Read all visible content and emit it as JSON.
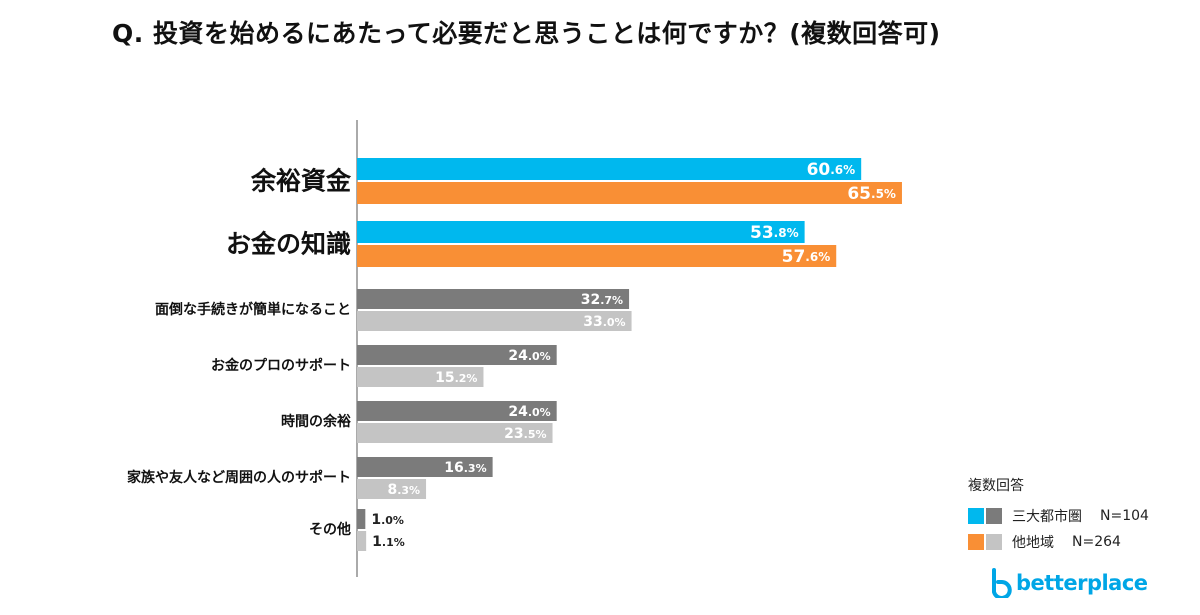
{
  "title": "Q. 投資を始めるにあたって必要だと思うことは何ですか？(複数回答可)",
  "chart_data": {
    "type": "bar",
    "orientation": "horizontal",
    "categories": [
      "余裕資金",
      "お金の知識",
      "面倒な手続きが簡単になること",
      "お金のプロのサポート",
      "時間の余裕",
      "家族や友人など周囲の人のサポート",
      "その他"
    ],
    "emphasized_categories": [
      0,
      1
    ],
    "series": [
      {
        "name": "三大都市圏",
        "n_label": "N=104",
        "values": [
          60.6,
          53.8,
          32.7,
          24.0,
          24.0,
          16.3,
          1.0
        ]
      },
      {
        "name": "他地域",
        "n_label": "N=264",
        "values": [
          65.5,
          57.6,
          33.0,
          15.2,
          23.5,
          8.3,
          1.1
        ]
      }
    ],
    "unit": "%",
    "xlim": [
      0,
      100
    ],
    "colors": {
      "series1_highlight": "#00b8ee",
      "series2_highlight": "#f98f35",
      "series1_normal": "#7b7b7b",
      "series2_normal": "#c4c4c4"
    }
  },
  "legend": {
    "title": "複数回答",
    "items": [
      {
        "label": "三大都市圏",
        "n": "N=104"
      },
      {
        "label": "他地域",
        "n": "N=264"
      }
    ]
  },
  "logo": {
    "text": "betterplace"
  }
}
